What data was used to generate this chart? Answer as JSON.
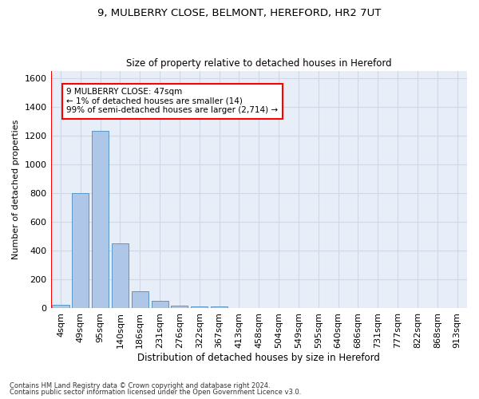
{
  "title1": "9, MULBERRY CLOSE, BELMONT, HEREFORD, HR2 7UT",
  "title2": "Size of property relative to detached houses in Hereford",
  "xlabel": "Distribution of detached houses by size in Hereford",
  "ylabel": "Number of detached properties",
  "categories": [
    "4sqm",
    "49sqm",
    "95sqm",
    "140sqm",
    "186sqm",
    "231sqm",
    "276sqm",
    "322sqm",
    "367sqm",
    "413sqm",
    "458sqm",
    "504sqm",
    "549sqm",
    "595sqm",
    "640sqm",
    "686sqm",
    "731sqm",
    "777sqm",
    "822sqm",
    "868sqm",
    "913sqm"
  ],
  "values": [
    25,
    800,
    1230,
    450,
    120,
    55,
    20,
    12,
    12,
    0,
    0,
    0,
    0,
    0,
    0,
    0,
    0,
    0,
    0,
    0,
    0
  ],
  "bar_color": "#aec6e8",
  "bar_edge_color": "#5a96c8",
  "annotation_line1": "9 MULBERRY CLOSE: 47sqm",
  "annotation_line2": "← 1% of detached houses are smaller (14)",
  "annotation_line3": "99% of semi-detached houses are larger (2,714) →",
  "ylim": [
    0,
    1650
  ],
  "yticks": [
    0,
    200,
    400,
    600,
    800,
    1000,
    1200,
    1400,
    1600
  ],
  "footer1": "Contains HM Land Registry data © Crown copyright and database right 2024.",
  "footer2": "Contains public sector information licensed under the Open Government Licence v3.0.",
  "grid_color": "#d0d8e8",
  "bg_color": "#e8eef8"
}
